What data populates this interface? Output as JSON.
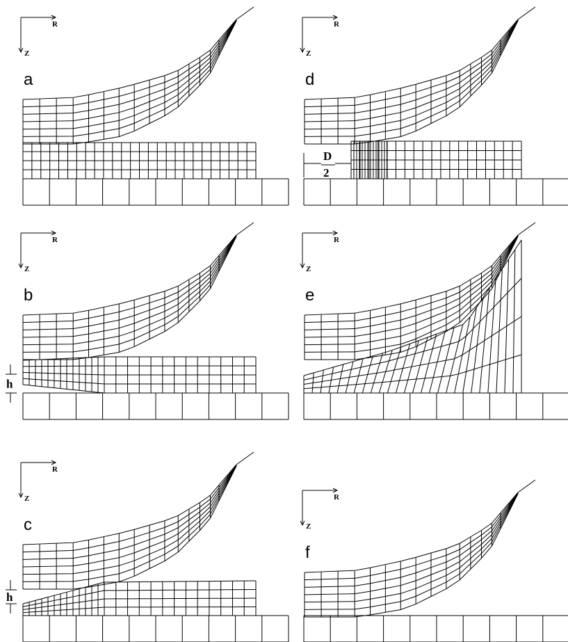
{
  "panels": [
    {
      "label": "a",
      "axis_r": "R",
      "axis_z": "Z"
    },
    {
      "label": "b",
      "axis_r": "R",
      "axis_z": "Z",
      "gap_label": "h"
    },
    {
      "label": "c",
      "axis_r": "R",
      "axis_z": "Z",
      "gap_label": "h"
    },
    {
      "label": "d",
      "axis_r": "R",
      "axis_z": "Z",
      "distance_label": {
        "numerator": "D",
        "denominator": "2"
      }
    },
    {
      "label": "e",
      "axis_r": "R",
      "axis_z": "Z"
    },
    {
      "label": "f",
      "axis_r": "R",
      "axis_z": "Z"
    }
  ]
}
